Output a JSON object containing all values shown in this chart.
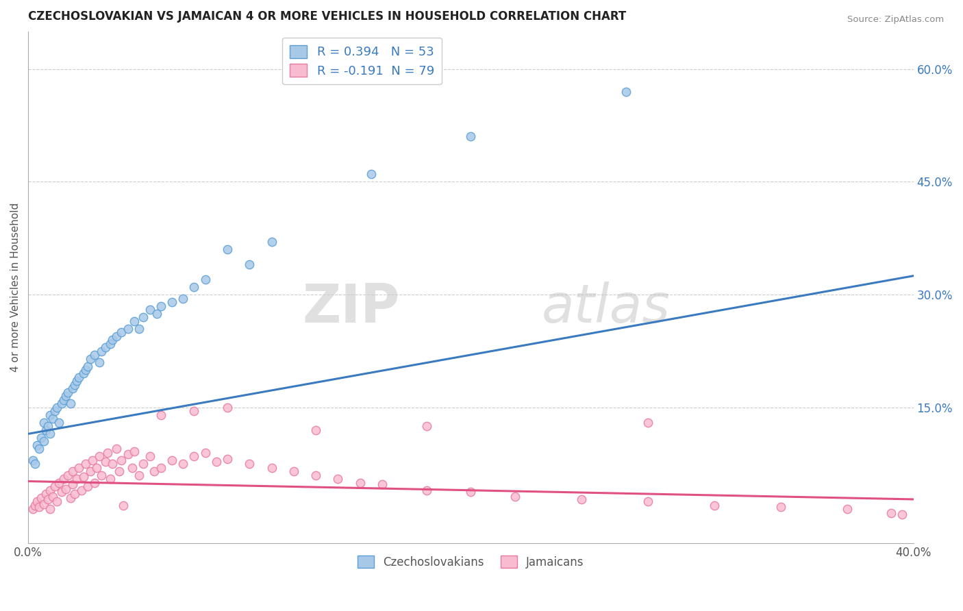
{
  "title": "CZECHOSLOVAKIAN VS JAMAICAN 4 OR MORE VEHICLES IN HOUSEHOLD CORRELATION CHART",
  "source": "Source: ZipAtlas.com",
  "ylabel": "4 or more Vehicles in Household",
  "xlim": [
    0.0,
    0.4
  ],
  "ylim": [
    -0.03,
    0.65
  ],
  "yticks_right": [
    0.15,
    0.3,
    0.45,
    0.6
  ],
  "ytick_right_labels": [
    "15.0%",
    "30.0%",
    "45.0%",
    "60.0%"
  ],
  "blue_color": "#a8c8e8",
  "blue_edge_color": "#5a9fd4",
  "pink_color": "#f8bbd0",
  "pink_edge_color": "#e87aa0",
  "blue_line_color": "#3a7abf",
  "pink_line_color": "#e05080",
  "legend_text_color": "#3a7abf",
  "R_blue": 0.394,
  "N_blue": 53,
  "R_pink": -0.191,
  "N_pink": 79,
  "watermark_zip": "ZIP",
  "watermark_atlas": "atlas",
  "legend_blue": "Czechoslovakians",
  "legend_pink": "Jamaicans",
  "blue_line_x0": 0.0,
  "blue_line_y0": 0.115,
  "blue_line_x1": 0.4,
  "blue_line_y1": 0.325,
  "pink_line_x0": 0.0,
  "pink_line_y0": 0.052,
  "pink_line_x1": 0.4,
  "pink_line_y1": 0.028,
  "blue_scatter_x": [
    0.002,
    0.003,
    0.004,
    0.005,
    0.006,
    0.007,
    0.007,
    0.008,
    0.009,
    0.01,
    0.01,
    0.011,
    0.012,
    0.013,
    0.014,
    0.015,
    0.016,
    0.017,
    0.018,
    0.019,
    0.02,
    0.021,
    0.022,
    0.023,
    0.025,
    0.026,
    0.027,
    0.028,
    0.03,
    0.032,
    0.033,
    0.035,
    0.037,
    0.038,
    0.04,
    0.042,
    0.045,
    0.048,
    0.05,
    0.052,
    0.055,
    0.058,
    0.06,
    0.065,
    0.07,
    0.075,
    0.08,
    0.09,
    0.1,
    0.11,
    0.155,
    0.2,
    0.27
  ],
  "blue_scatter_y": [
    0.08,
    0.075,
    0.1,
    0.095,
    0.11,
    0.105,
    0.13,
    0.12,
    0.125,
    0.115,
    0.14,
    0.135,
    0.145,
    0.15,
    0.13,
    0.155,
    0.16,
    0.165,
    0.17,
    0.155,
    0.175,
    0.18,
    0.185,
    0.19,
    0.195,
    0.2,
    0.205,
    0.215,
    0.22,
    0.21,
    0.225,
    0.23,
    0.235,
    0.24,
    0.245,
    0.25,
    0.255,
    0.265,
    0.255,
    0.27,
    0.28,
    0.275,
    0.285,
    0.29,
    0.295,
    0.31,
    0.32,
    0.36,
    0.34,
    0.37,
    0.46,
    0.51,
    0.57
  ],
  "pink_scatter_x": [
    0.002,
    0.003,
    0.004,
    0.005,
    0.006,
    0.007,
    0.008,
    0.009,
    0.01,
    0.01,
    0.011,
    0.012,
    0.013,
    0.014,
    0.015,
    0.016,
    0.017,
    0.018,
    0.019,
    0.02,
    0.02,
    0.021,
    0.022,
    0.023,
    0.024,
    0.025,
    0.026,
    0.027,
    0.028,
    0.029,
    0.03,
    0.031,
    0.032,
    0.033,
    0.035,
    0.036,
    0.037,
    0.038,
    0.04,
    0.041,
    0.042,
    0.043,
    0.045,
    0.047,
    0.048,
    0.05,
    0.052,
    0.055,
    0.057,
    0.06,
    0.065,
    0.07,
    0.075,
    0.08,
    0.085,
    0.09,
    0.1,
    0.11,
    0.12,
    0.13,
    0.14,
    0.15,
    0.16,
    0.18,
    0.2,
    0.22,
    0.25,
    0.28,
    0.31,
    0.34,
    0.37,
    0.39,
    0.395,
    0.06,
    0.075,
    0.09,
    0.13,
    0.18,
    0.28
  ],
  "pink_scatter_y": [
    0.015,
    0.02,
    0.025,
    0.018,
    0.03,
    0.022,
    0.035,
    0.028,
    0.04,
    0.015,
    0.032,
    0.045,
    0.025,
    0.05,
    0.038,
    0.055,
    0.042,
    0.06,
    0.03,
    0.048,
    0.065,
    0.035,
    0.055,
    0.07,
    0.04,
    0.058,
    0.075,
    0.045,
    0.065,
    0.08,
    0.05,
    0.07,
    0.085,
    0.06,
    0.078,
    0.09,
    0.055,
    0.075,
    0.095,
    0.065,
    0.08,
    0.02,
    0.088,
    0.07,
    0.092,
    0.06,
    0.075,
    0.085,
    0.065,
    0.07,
    0.08,
    0.075,
    0.085,
    0.09,
    0.078,
    0.082,
    0.075,
    0.07,
    0.065,
    0.06,
    0.055,
    0.05,
    0.048,
    0.04,
    0.038,
    0.032,
    0.028,
    0.025,
    0.02,
    0.018,
    0.015,
    0.01,
    0.008,
    0.14,
    0.145,
    0.15,
    0.12,
    0.125,
    0.13
  ]
}
